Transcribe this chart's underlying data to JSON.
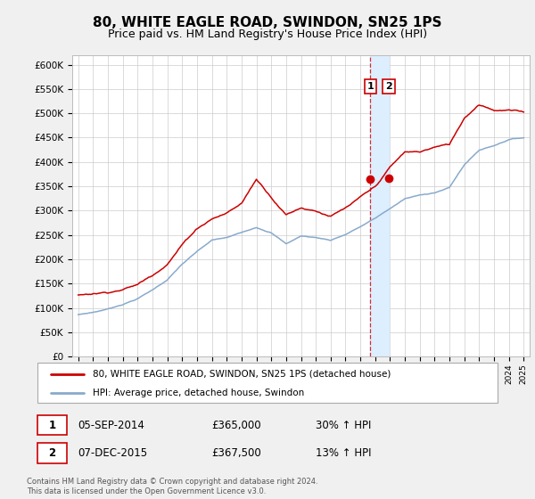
{
  "title": "80, WHITE EAGLE ROAD, SWINDON, SN25 1PS",
  "subtitle": "Price paid vs. HM Land Registry's House Price Index (HPI)",
  "title_fontsize": 11,
  "subtitle_fontsize": 9,
  "ylabel_ticks": [
    "£0",
    "£50K",
    "£100K",
    "£150K",
    "£200K",
    "£250K",
    "£300K",
    "£350K",
    "£400K",
    "£450K",
    "£500K",
    "£550K",
    "£600K"
  ],
  "ytick_values": [
    0,
    50000,
    100000,
    150000,
    200000,
    250000,
    300000,
    350000,
    400000,
    450000,
    500000,
    550000,
    600000
  ],
  "ylim": [
    0,
    620000
  ],
  "red_line_color": "#cc0000",
  "blue_line_color": "#88aacc",
  "highlight_fill": "#ddeeff",
  "dashed_line_color": "#cc0000",
  "marker1_year": 2014.68,
  "marker2_year": 2015.92,
  "sale1_price": 365000,
  "sale2_price": 367500,
  "legend_entry1": "80, WHITE EAGLE ROAD, SWINDON, SN25 1PS (detached house)",
  "legend_entry2": "HPI: Average price, detached house, Swindon",
  "table_row1": [
    "1",
    "05-SEP-2014",
    "£365,000",
    "30% ↑ HPI"
  ],
  "table_row2": [
    "2",
    "07-DEC-2015",
    "£367,500",
    "13% ↑ HPI"
  ],
  "footer": "Contains HM Land Registry data © Crown copyright and database right 2024.\nThis data is licensed under the Open Government Licence v3.0.",
  "bg_color": "#f0f0f0",
  "plot_bg": "#ffffff",
  "hpi_curve": {
    "1995": 85000,
    "1996": 90000,
    "1997": 97000,
    "1998": 107000,
    "1999": 119000,
    "2000": 137000,
    "2001": 158000,
    "2002": 190000,
    "2003": 215000,
    "2004": 238000,
    "2005": 243000,
    "2006": 253000,
    "2007": 265000,
    "2008": 255000,
    "2009": 232000,
    "2010": 248000,
    "2011": 245000,
    "2012": 240000,
    "2013": 252000,
    "2014": 268000,
    "2015": 285000,
    "2016": 305000,
    "2017": 325000,
    "2018": 332000,
    "2019": 338000,
    "2020": 348000,
    "2021": 395000,
    "2022": 425000,
    "2023": 435000,
    "2024": 448000,
    "2025": 452000
  },
  "red_curve": {
    "1995": 118000,
    "1996": 122000,
    "1997": 126000,
    "1998": 133000,
    "1999": 143000,
    "2000": 163000,
    "2001": 188000,
    "2002": 228000,
    "2003": 262000,
    "2004": 283000,
    "2005": 295000,
    "2006": 315000,
    "2007": 365000,
    "2008": 330000,
    "2009": 295000,
    "2010": 310000,
    "2011": 305000,
    "2012": 295000,
    "2013": 310000,
    "2014": 330000,
    "2015": 350000,
    "2016": 390000,
    "2017": 420000,
    "2018": 420000,
    "2019": 430000,
    "2020": 435000,
    "2021": 490000,
    "2022": 520000,
    "2023": 510000,
    "2024": 510000,
    "2025": 505000
  }
}
